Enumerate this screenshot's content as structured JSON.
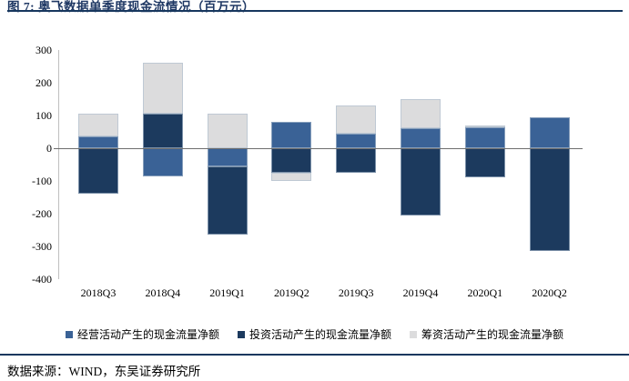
{
  "page": {
    "title": "图 7: 奥飞数据单季度现金流情况（百万元）",
    "source": "数据来源：WIND，东吴证券研究所"
  },
  "chart_data": {
    "type": "bar",
    "stacked": true,
    "title": "奥飞数据单季度现金流情况（百万元）",
    "categories": [
      "2018Q3",
      "2018Q4",
      "2019Q1",
      "2019Q2",
      "2019Q3",
      "2019Q4",
      "2020Q1",
      "2020Q2"
    ],
    "series": [
      {
        "id": "operating",
        "name": "经营活动产生的现金流量净额",
        "color": "#3A6296",
        "values": [
          35,
          -85,
          -55,
          80,
          45,
          60,
          65,
          95
        ]
      },
      {
        "id": "investing",
        "name": "投资活动产生的现金流量净额",
        "color": "#1C3A5E",
        "values": [
          -140,
          105,
          -210,
          -75,
          -75,
          -205,
          -90,
          -315
        ]
      },
      {
        "id": "financing",
        "name": "筹资活动产生的现金流量净额",
        "color": "#DCDCDD",
        "values": [
          70,
          155,
          105,
          -25,
          85,
          90,
          5,
          0
        ]
      }
    ],
    "ylim": [
      -400,
      300
    ],
    "yticks": [
      300,
      200,
      100,
      0,
      -100,
      -200,
      -300,
      -400
    ],
    "xlabel": "",
    "ylabel": "",
    "grid": false,
    "legend_position": "bottom"
  }
}
